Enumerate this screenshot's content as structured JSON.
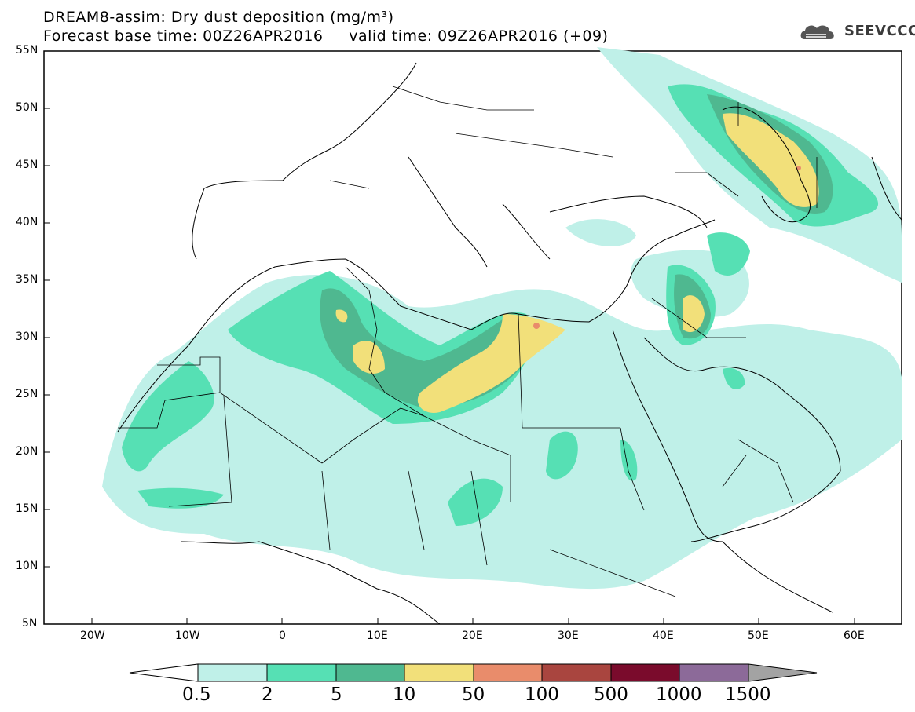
{
  "title_line1": "DREAM8-assim: Dry dust deposition (mg/m³)",
  "title_line2_base": "Forecast base time: 00Z26APR2016",
  "title_line2_valid": "valid time: 09Z26APR2016 (+09)",
  "logo_text": "SEEVCCC",
  "lat_labels": [
    "55N",
    "50N",
    "45N",
    "40N",
    "35N",
    "30N",
    "25N",
    "20N",
    "15N",
    "10N",
    "5N"
  ],
  "lon_labels": [
    "20W",
    "10W",
    "0",
    "10E",
    "20E",
    "30E",
    "40E",
    "50E",
    "60E"
  ],
  "colorbar": {
    "levels": [
      "0.5",
      "2",
      "5",
      "10",
      "50",
      "100",
      "500",
      "1000",
      "1500"
    ],
    "colors": [
      "#bff0e8",
      "#56e0b4",
      "#4fb890",
      "#f2e07a",
      "#e98c6b",
      "#a9453f",
      "#7a0b2c",
      "#8c6a99",
      "#a3a3a3"
    ]
  }
}
